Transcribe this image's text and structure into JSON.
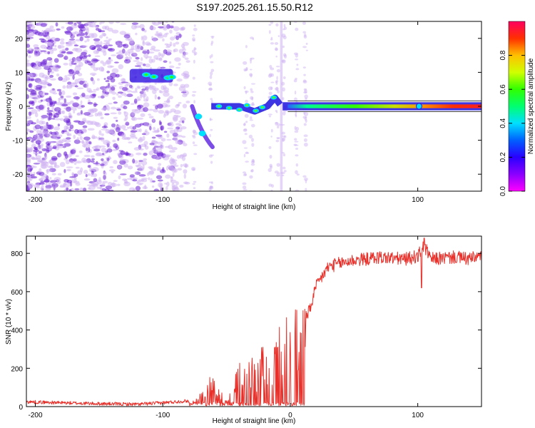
{
  "title": "S197.2025.261.15.50.R12",
  "colors": {
    "background": "#ffffff",
    "axis": "#000000",
    "snr_line": "#e8302a",
    "scatter_light": "#cdb0f2",
    "scatter_dark": "#6a1fd6"
  },
  "chart_data": [
    {
      "type": "heatmap",
      "title": "",
      "xlabel": "Height of straight line (km)",
      "ylabel": "Frequency (Hz)",
      "xlim": [
        -207,
        150
      ],
      "ylim": [
        -25,
        25
      ],
      "xticks": [
        -200,
        -100,
        0,
        100
      ],
      "yticks": [
        -20,
        -10,
        0,
        10,
        20
      ],
      "colorbar": {
        "label": "Normalized spectral amplitude",
        "range": [
          0,
          1
        ],
        "ticks": [
          "0.0",
          "0.2",
          "0.4",
          "0.6",
          "0.8"
        ],
        "colormap": [
          "#ff00ff",
          "#8a00ff",
          "#2a00ff",
          "#0060ff",
          "#00e0ff",
          "#00ff70",
          "#30ff00",
          "#d0ff00",
          "#ffc000",
          "#ff3000",
          "#ff0060"
        ]
      },
      "features": [
        {
          "name": "noise_cloud",
          "x_range": [
            -207,
            -80
          ],
          "freq_range": [
            -25,
            25
          ],
          "amplitude": 0.15
        },
        {
          "name": "upper_band",
          "x_range": [
            -126,
            -92
          ],
          "freq": 9,
          "amplitude": 0.3
        },
        {
          "name": "descending_branch",
          "x_range": [
            -77,
            -60
          ],
          "freq_range": [
            -12,
            0
          ],
          "amplitude": 0.35
        },
        {
          "name": "onset_band",
          "x_range": [
            -62,
            -8
          ],
          "freq_range": [
            -2,
            3
          ],
          "amplitude": 0.4
        },
        {
          "name": "carrier_band",
          "x_range": [
            -6,
            150
          ],
          "freq": 0,
          "amplitude_range": [
            0.3,
            0.95
          ]
        }
      ]
    },
    {
      "type": "line",
      "title": "",
      "xlabel": "Height of straight line (km)",
      "ylabel": "SNR (10 * v/v)",
      "xlim": [
        -207,
        150
      ],
      "ylim": [
        0,
        890
      ],
      "xticks": [
        -200,
        -100,
        0,
        100
      ],
      "yticks": [
        0,
        200,
        400,
        600,
        800
      ],
      "series": [
        {
          "name": "SNR",
          "x": [
            -207,
            -180,
            -150,
            -120,
            -100,
            -90,
            -80,
            -75,
            -70,
            -65,
            -62,
            -58,
            -55,
            -50,
            -45,
            -40,
            -35,
            -30,
            -25,
            -20,
            -15,
            -10,
            -5,
            0,
            5,
            10,
            15,
            20,
            25,
            30,
            40,
            50,
            60,
            70,
            80,
            90,
            100,
            105,
            110,
            120,
            130,
            140,
            150
          ],
          "values": [
            25,
            20,
            15,
            12,
            20,
            25,
            30,
            20,
            60,
            100,
            150,
            80,
            60,
            30,
            70,
            200,
            130,
            250,
            180,
            280,
            200,
            300,
            350,
            370,
            400,
            430,
            500,
            620,
            680,
            730,
            750,
            765,
            770,
            780,
            775,
            770,
            785,
            840,
            770,
            775,
            780,
            770,
            785
          ]
        }
      ]
    }
  ]
}
